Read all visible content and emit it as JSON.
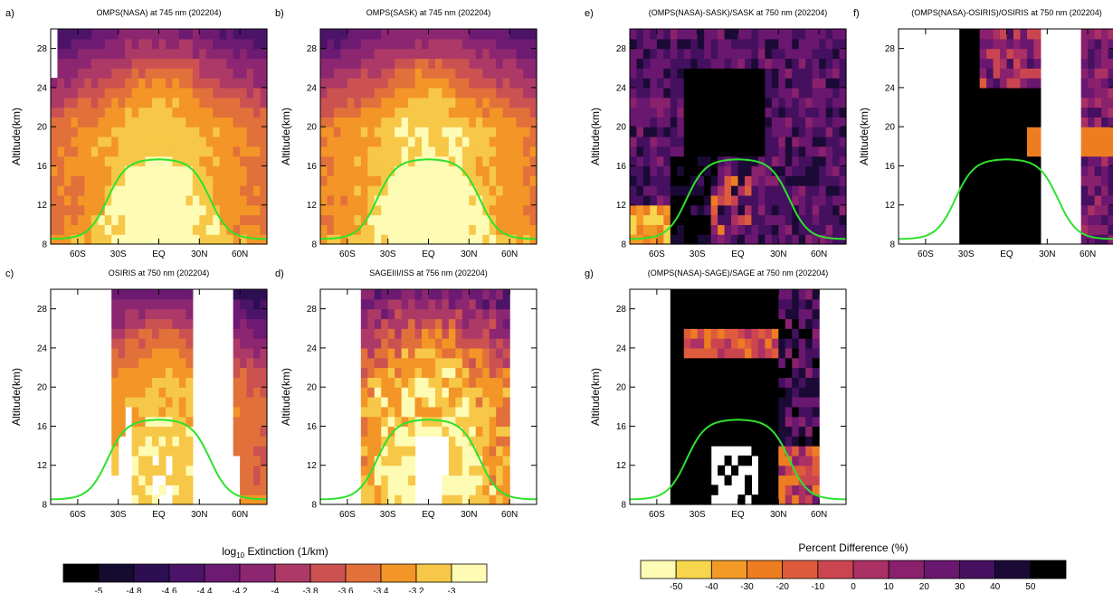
{
  "chart_data": [
    {
      "panel": "a)",
      "type": "heatmap",
      "title": "OMPS(NASA) at 745 nm (202204)",
      "ylabel": "Altitude(km)",
      "xticks": [
        "60S",
        "30S",
        "EQ",
        "30N",
        "60N"
      ],
      "yticks": [
        "8",
        "12",
        "16",
        "20",
        "24",
        "28"
      ],
      "xlim": [
        -80,
        80
      ],
      "ylim": [
        8,
        30
      ],
      "variable": "log10 Extinction",
      "value_range": [
        -5,
        -2.9
      ],
      "tropopause_line_km": 16.7
    },
    {
      "panel": "b)",
      "type": "heatmap",
      "title": "OMPS(SASK) at 745 nm (202204)",
      "ylabel": "Altitude(km)",
      "xticks": [
        "60S",
        "30S",
        "EQ",
        "30N",
        "60N"
      ],
      "yticks": [
        "8",
        "12",
        "16",
        "20",
        "24",
        "28"
      ],
      "xlim": [
        -80,
        80
      ],
      "ylim": [
        8,
        30
      ],
      "variable": "log10 Extinction",
      "value_range": [
        -5,
        -2.9
      ],
      "tropopause_line_km": 16.7
    },
    {
      "panel": "c)",
      "type": "heatmap",
      "title": "OSIRIS at 750 nm (202204)",
      "ylabel": "Altitude(km)",
      "xticks": [
        "60S",
        "30S",
        "EQ",
        "30N",
        "60N"
      ],
      "yticks": [
        "8",
        "12",
        "16",
        "20",
        "24",
        "28"
      ],
      "xlim": [
        -80,
        80
      ],
      "ylim": [
        8,
        30
      ],
      "variable": "log10 Extinction",
      "value_range": [
        -5,
        -2.9
      ],
      "tropopause_line_km": 16.7
    },
    {
      "panel": "d)",
      "type": "heatmap",
      "title": "SAGEIII/ISS at 756 nm (202204)",
      "ylabel": "Altitude(km)",
      "xticks": [
        "60S",
        "30S",
        "EQ",
        "30N",
        "60N"
      ],
      "yticks": [
        "8",
        "12",
        "16",
        "20",
        "24",
        "28"
      ],
      "xlim": [
        -80,
        80
      ],
      "ylim": [
        8,
        30
      ],
      "variable": "log10 Extinction",
      "value_range": [
        -5,
        -2.9
      ],
      "tropopause_line_km": 16.7
    },
    {
      "panel": "e)",
      "type": "heatmap",
      "title": "(OMPS(NASA)-SASK)/SASK at 750 nm (202204)",
      "ylabel": "Altitude(km)",
      "xticks": [
        "60S",
        "30S",
        "EQ",
        "30N",
        "60N"
      ],
      "yticks": [
        "8",
        "12",
        "16",
        "20",
        "24",
        "28"
      ],
      "xlim": [
        -80,
        80
      ],
      "ylim": [
        8,
        30
      ],
      "variable": "Percent Difference",
      "value_range": [
        -55,
        55
      ],
      "tropopause_line_km": 16.7
    },
    {
      "panel": "f)",
      "type": "heatmap",
      "title": "(OMPS(NASA)-OSIRIS)/OSIRIS at 750 nm (202204)",
      "ylabel": "Altitude(km)",
      "xticks": [
        "60S",
        "30S",
        "EQ",
        "30N",
        "60N"
      ],
      "yticks": [
        "8",
        "12",
        "16",
        "20",
        "24",
        "28"
      ],
      "xlim": [
        -80,
        80
      ],
      "ylim": [
        8,
        30
      ],
      "variable": "Percent Difference",
      "value_range": [
        -55,
        55
      ],
      "tropopause_line_km": 16.7
    },
    {
      "panel": "g)",
      "type": "heatmap",
      "title": "(OMPS(NASA)-SAGE)/SAGE at 750 nm (202204)",
      "ylabel": "Altitude(km)",
      "xticks": [
        "60S",
        "30S",
        "EQ",
        "30N",
        "60N"
      ],
      "yticks": [
        "8",
        "12",
        "16",
        "20",
        "24",
        "28"
      ],
      "xlim": [
        -80,
        80
      ],
      "ylim": [
        8,
        30
      ],
      "variable": "Percent Difference",
      "value_range": [
        -55,
        55
      ],
      "tropopause_line_km": 16.7
    }
  ],
  "colorbars": {
    "extinction": {
      "title_prefix": "log",
      "title_sub": "10",
      "title_rest": " Extinction (1/km)",
      "labels": [
        "-5",
        "-4.8",
        "-4.6",
        "-4.4",
        "-4.2",
        "-4",
        "-3.8",
        "-3.6",
        "-3.4",
        "-3.2",
        "-3"
      ],
      "colors": [
        "#000000",
        "#150b2e",
        "#2d0e53",
        "#4b1468",
        "#6c1a72",
        "#8c2671",
        "#ad3a66",
        "#cb5251",
        "#e2703a",
        "#f39527",
        "#f7c747",
        "#fdfbb4"
      ]
    },
    "difference": {
      "title": "Percent Difference (%)",
      "labels": [
        "-50",
        "-40",
        "-30",
        "-20",
        "-10",
        "0",
        "10",
        "20",
        "30",
        "40",
        "50"
      ],
      "colors": [
        "#fdfbb4",
        "#f7d54c",
        "#f39a26",
        "#ee7d22",
        "#de5c3c",
        "#cb4550",
        "#ab3064",
        "#8a216d",
        "#6a1770",
        "#45105f",
        "#1c0a36",
        "#000000"
      ]
    }
  },
  "tropopause_color": "#2ee12e"
}
